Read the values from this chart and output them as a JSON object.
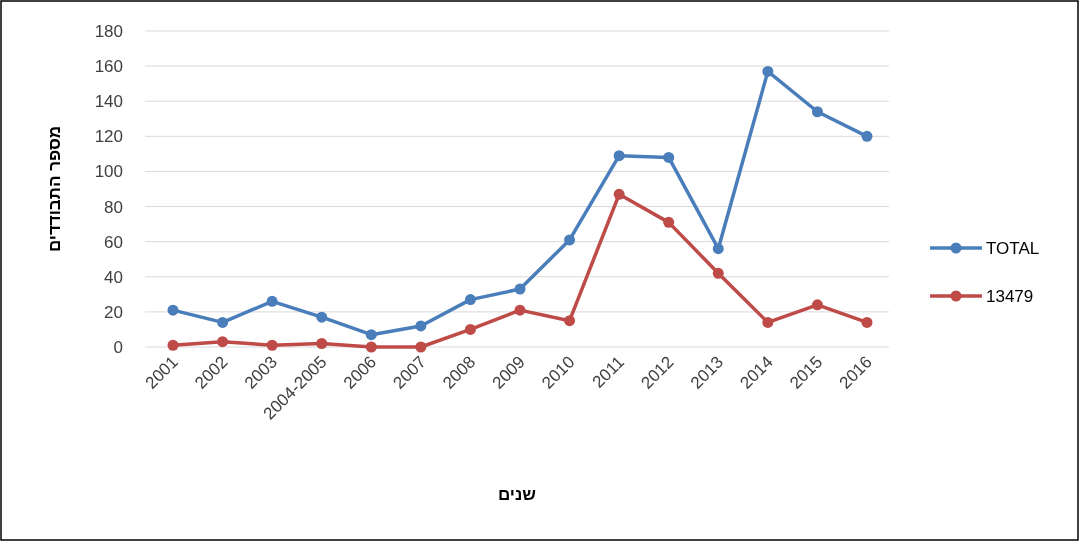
{
  "chart_data": {
    "type": "line",
    "xlabel": "שנים",
    "ylabel": "מספר התבודדים",
    "categories": [
      "2001",
      "2002",
      "2003",
      "2004-2005",
      "2006",
      "2007",
      "2008",
      "2009",
      "2010",
      "2011",
      "2012",
      "2013",
      "2014",
      "2015",
      "2016"
    ],
    "series": [
      {
        "name": "TOTAL",
        "color": "#4a7ebb",
        "values": [
          21,
          14,
          26,
          17,
          7,
          12,
          27,
          33,
          61,
          109,
          108,
          56,
          157,
          134,
          120
        ]
      },
      {
        "name": "13479",
        "color": "#be4b48",
        "values": [
          1,
          3,
          1,
          2,
          0,
          0,
          10,
          21,
          15,
          87,
          71,
          42,
          14,
          24,
          14
        ]
      }
    ],
    "ylim": [
      0,
      180
    ],
    "yticks": [
      0,
      20,
      40,
      60,
      80,
      100,
      120,
      140,
      160,
      180
    ],
    "grid": "y",
    "legend": "right",
    "marker": "circle"
  }
}
